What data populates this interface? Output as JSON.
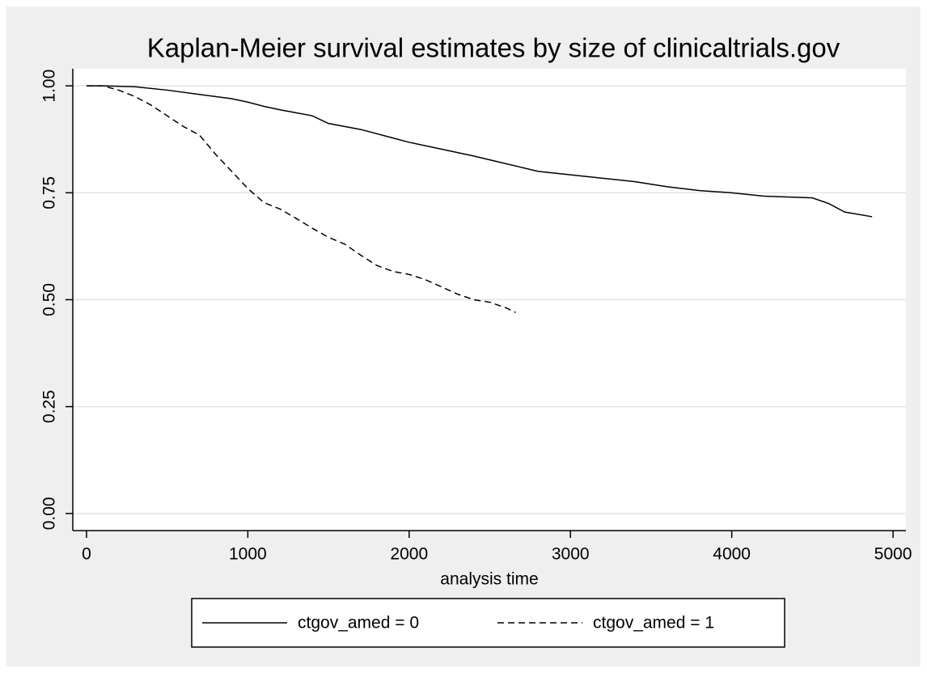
{
  "chart_data": {
    "type": "line",
    "title": "Kaplan-Meier survival estimates by size of clinicaltrials.gov",
    "x_label": "analysis time",
    "xlim": [
      -85,
      5080
    ],
    "xticks": [
      0,
      1000,
      2000,
      3000,
      4000,
      5000
    ],
    "ylim": [
      -0.04,
      1.04
    ],
    "yticks": [
      {
        "value": 0,
        "label": "0.00"
      },
      {
        "value": 0.25,
        "label": "0.25"
      },
      {
        "value": 0.5,
        "label": "0.50"
      },
      {
        "value": 0.75,
        "label": "0.75"
      },
      {
        "value": 1,
        "label": "1.00"
      }
    ],
    "grid": true,
    "legend": "bottom",
    "series": [
      {
        "name": "ctgov_amed = 0",
        "color": "#000000",
        "dash": "solid",
        "x": [
          0,
          100,
          300,
          500,
          700,
          900,
          1000,
          1100,
          1200,
          1400,
          1500,
          1700,
          1900,
          2000,
          2200,
          2400,
          2600,
          2800,
          3000,
          3200,
          3400,
          3600,
          3800,
          4000,
          4200,
          4500,
          4600,
          4700,
          4870
        ],
        "values": [
          1.0,
          1.0,
          0.998,
          0.99,
          0.98,
          0.97,
          0.962,
          0.952,
          0.944,
          0.93,
          0.912,
          0.898,
          0.878,
          0.868,
          0.852,
          0.836,
          0.818,
          0.8,
          0.792,
          0.784,
          0.776,
          0.764,
          0.755,
          0.75,
          0.742,
          0.738,
          0.725,
          0.705,
          0.694
        ]
      },
      {
        "name": "ctgov_amed = 1",
        "color": "#000000",
        "dash": "dashed",
        "x": [
          0,
          100,
          200,
          300,
          400,
          500,
          600,
          700,
          800,
          900,
          1000,
          1100,
          1200,
          1300,
          1400,
          1500,
          1600,
          1700,
          1800,
          1900,
          2000,
          2100,
          2200,
          2300,
          2400,
          2500,
          2600,
          2660
        ],
        "values": [
          1.0,
          1.0,
          0.99,
          0.975,
          0.955,
          0.93,
          0.905,
          0.885,
          0.84,
          0.8,
          0.76,
          0.727,
          0.712,
          0.69,
          0.667,
          0.646,
          0.63,
          0.604,
          0.58,
          0.566,
          0.559,
          0.547,
          0.53,
          0.513,
          0.5,
          0.494,
          0.481,
          0.47
        ]
      }
    ]
  }
}
